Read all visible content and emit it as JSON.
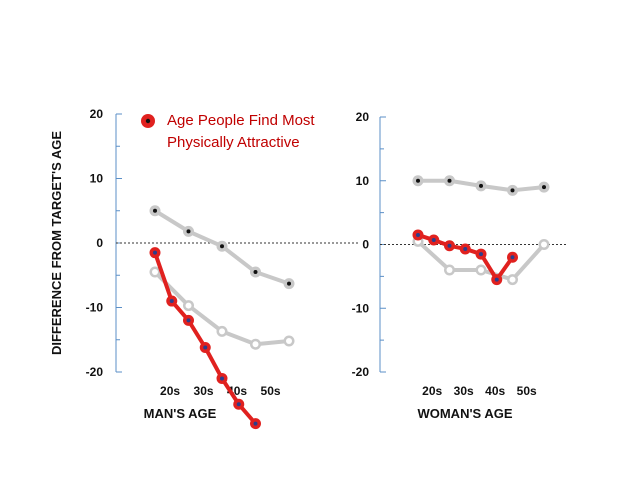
{
  "chart_data": [
    {
      "type": "line",
      "xlabel": "MAN'S AGE",
      "ylabel": "DIFFERENCE FROM TARGET'S AGE",
      "ylim": [
        -20,
        20
      ],
      "yticks": [
        "20",
        "10",
        "0",
        "-10",
        "-20"
      ],
      "xtick_labels": [
        "20s",
        "30s",
        "40s",
        "50s"
      ],
      "zero_line": "dashed",
      "legend": {
        "label_lines": [
          "Age People Find Most",
          "Physically Attractive"
        ],
        "placement": "top"
      },
      "series": [
        {
          "role": "upper",
          "color": "#c8c8c8",
          "marker_dot": "#111111",
          "x": [
            20,
            25,
            30,
            35,
            40
          ],
          "y": [
            5,
            1.8,
            -0.5,
            -4.5,
            -6.3
          ]
        },
        {
          "role": "lower",
          "color": "#c8c8c8",
          "marker_dot": "#c8c8c8",
          "x": [
            20,
            25,
            30,
            35,
            40
          ],
          "y": [
            -4.5,
            -9.7,
            -13.7,
            -15.7,
            -15.2
          ]
        },
        {
          "role": "attractive",
          "name": "Age People Find Most Physically Attractive",
          "color": "#e0211f",
          "marker_dot": "#2c3e8c",
          "x": [
            20,
            22.5,
            25,
            27.5,
            30,
            32.5,
            35
          ],
          "y": [
            -1.5,
            -9,
            -12,
            -16.2,
            -21,
            -25,
            -28
          ]
        }
      ]
    },
    {
      "type": "line",
      "xlabel": "WOMAN'S AGE",
      "ylabel": "",
      "ylim": [
        -20,
        20
      ],
      "yticks": [
        "20",
        "10",
        "0",
        "-10",
        "-20"
      ],
      "xtick_labels": [
        "20s",
        "30s",
        "40s",
        "50s"
      ],
      "zero_line": "dashed",
      "series": [
        {
          "role": "upper",
          "color": "#c8c8c8",
          "marker_dot": "#111111",
          "x": [
            20,
            25,
            30,
            35,
            40
          ],
          "y": [
            10,
            10,
            9.2,
            8.5,
            9
          ]
        },
        {
          "role": "lower",
          "color": "#c8c8c8",
          "marker_dot": "#c8c8c8",
          "x": [
            20,
            25,
            30,
            35,
            40
          ],
          "y": [
            0.5,
            -4,
            -4,
            -5.5,
            0
          ]
        },
        {
          "role": "attractive",
          "color": "#e0211f",
          "marker_dot": "#2c3e8c",
          "x": [
            20,
            22.5,
            25,
            27.5,
            30,
            32.5,
            35
          ],
          "y": [
            1.5,
            0.7,
            -0.2,
            -0.7,
            -1.5,
            -5.5,
            -2
          ]
        }
      ]
    }
  ]
}
